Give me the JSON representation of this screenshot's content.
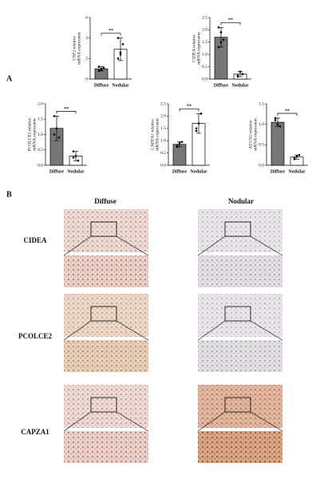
{
  "panel_a": {
    "label": "A"
  },
  "chart_data": [
    {
      "type": "bar",
      "y_label": [
        "USF2 relative",
        "mRNA expression"
      ],
      "categories": [
        "Diffuse",
        "Nodular"
      ],
      "values": [
        1.0,
        2.9
      ],
      "errors": [
        0.2,
        1.1
      ],
      "colors": [
        "#777777",
        "#ffffff"
      ],
      "points": [
        [
          0.8,
          1.0,
          1.1,
          1.2,
          0.9
        ],
        [
          2.0,
          2.6,
          3.4,
          4.0,
          2.4
        ]
      ],
      "significance": "**",
      "ylim": [
        0,
        6
      ],
      "yticks": [
        0,
        2,
        4,
        6
      ]
    },
    {
      "type": "bar",
      "y_label": [
        "CIDEA relative",
        "mRNA expression"
      ],
      "categories": [
        "Diffuse",
        "Nodular"
      ],
      "values": [
        1.7,
        0.2
      ],
      "errors": [
        0.4,
        0.1
      ],
      "colors": [
        "#777777",
        "#ffffff"
      ],
      "points": [
        [
          2.1,
          1.9,
          1.6,
          1.3,
          1.5
        ],
        [
          0.1,
          0.3,
          0.2,
          0.15
        ]
      ],
      "significance": "**",
      "ylim": [
        0,
        2.5
      ],
      "yticks": [
        {
          "value": 0,
          "label": "0.0"
        },
        {
          "value": 0.5,
          "label": "0.5"
        },
        {
          "value": 1,
          "label": "1.0"
        },
        {
          "value": 1.5,
          "label": "1.5"
        },
        {
          "value": 2,
          "label": "2.0"
        },
        {
          "value": 2.5,
          "label": "2.5"
        }
      ]
    },
    {
      "type": "bar",
      "y_label": [
        "PCOLCE2 relative",
        "mRNA expression"
      ],
      "categories": [
        "Diffuse",
        "Nodular"
      ],
      "values": [
        1.2,
        0.3
      ],
      "errors": [
        0.4,
        0.15
      ],
      "colors": [
        "#777777",
        "#ffffff"
      ],
      "points": [
        [
          1.6,
          1.2,
          0.9,
          1.0
        ],
        [
          0.45,
          0.3,
          0.15,
          0.25
        ]
      ],
      "significance": "**",
      "ylim": [
        0,
        2
      ],
      "yticks": [
        {
          "value": 0,
          "label": "0.0"
        },
        {
          "value": 0.5,
          "label": "0.5"
        },
        {
          "value": 1,
          "label": "1.0"
        },
        {
          "value": 1.5,
          "label": "1.5"
        },
        {
          "value": 2,
          "label": "2.0"
        }
      ]
    },
    {
      "type": "bar",
      "y_label": [
        "CAPZA1 relative",
        "mRNA expression"
      ],
      "categories": [
        "Diffuse",
        "Nodular"
      ],
      "values": [
        0.85,
        1.7
      ],
      "errors": [
        0.1,
        0.4
      ],
      "colors": [
        "#777777",
        "#ffffff"
      ],
      "points": [
        [
          0.8,
          0.9,
          0.95,
          0.75
        ],
        [
          1.4,
          1.7,
          2.1,
          1.5
        ]
      ],
      "significance": "**",
      "ylim": [
        0,
        2.5
      ],
      "yticks": [
        {
          "value": 0,
          "label": "0.0"
        },
        {
          "value": 0.5,
          "label": "0.5"
        },
        {
          "value": 1,
          "label": "1.0"
        },
        {
          "value": 1.5,
          "label": "1.5"
        },
        {
          "value": 2,
          "label": "2.0"
        },
        {
          "value": 2.5,
          "label": "2.5"
        }
      ]
    },
    {
      "type": "bar",
      "y_label": [
        "AUCN2 relative",
        "mRNA expression"
      ],
      "categories": [
        "Diffuse",
        "Nodular"
      ],
      "values": [
        1.05,
        0.2
      ],
      "errors": [
        0.1,
        0.05
      ],
      "colors": [
        "#777777",
        "#ffffff"
      ],
      "points": [
        [
          1.1,
          1.0,
          0.95,
          1.15
        ],
        [
          0.15,
          0.22,
          0.25,
          0.18
        ]
      ],
      "significance": "**",
      "ylim": [
        0,
        1.5
      ],
      "yticks": [
        {
          "value": 0,
          "label": "0.0"
        },
        {
          "value": 0.5,
          "label": "0.5"
        },
        {
          "value": 1,
          "label": "1.0"
        },
        {
          "value": 1.5,
          "label": "1.5"
        }
      ]
    }
  ],
  "panel_b": {
    "label": "B",
    "columns": [
      "Diffuse",
      "Nodular"
    ],
    "rows": [
      "CIDEA",
      "PCOLCE2",
      "CAPZA1"
    ]
  }
}
